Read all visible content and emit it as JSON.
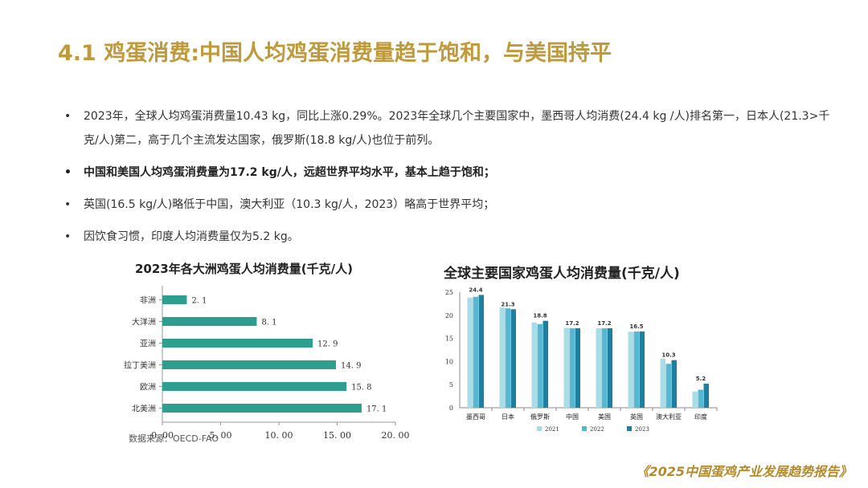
{
  "title": "4.1 鸡蛋消费:中国人均鸡蛋消费量趋于饱和，与美国持平",
  "bullets": [
    {
      "text": "2023年，全球人均鸡蛋消费量10.43 kg，同比上涨0.29%。2023年全球几个主要国家中，墨西哥人均消费(24.4 kg /人)排名第一，日本人(21.3>千克/人)第二，高于几个主流发达国家，俄罗斯(18.8 kg/人)也位于前列。",
      "bold": false
    },
    {
      "text": "中国和美国人均鸡蛋消费量为17.2 kg/人，远超世界平均水平，基本上趋于饱和；",
      "bold": true
    },
    {
      "text": "英国(16.5 kg/人)略低于中国，澳大利亚（10.3 kg/人，2023）略高于世界平均；",
      "bold": false
    },
    {
      "text": "因饮食习惯，印度人均消费量仅为5.2 kg。",
      "bold": false
    }
  ],
  "bullet_symbol": "•",
  "source": "数据来源：OECD-FAO",
  "footer": "《2025中国蛋鸡产业发展趋势报告》",
  "colors": {
    "title": "#c09a3a",
    "bar": "#2e9e8f",
    "series": [
      "#a8dce6",
      "#55b8d0",
      "#1f7f9e"
    ]
  },
  "chart_data": [
    {
      "type": "bar",
      "orientation": "horizontal",
      "title": "2023年各大洲鸡蛋人均消费量(千克/人)",
      "categories": [
        "非洲",
        "大洋洲",
        "亚洲",
        "拉丁美洲",
        "欧洲",
        "北美洲"
      ],
      "values": [
        2.1,
        8.1,
        12.9,
        14.9,
        15.8,
        17.1
      ],
      "value_labels": [
        "2. 1",
        "8. 1",
        "12. 9",
        "14. 9",
        "15. 8",
        "17. 1"
      ],
      "xlim": [
        0,
        20
      ],
      "xticks": [
        "0. 00",
        "5. 00",
        "10. 00",
        "15. 00",
        "20. 00"
      ],
      "grid": false
    },
    {
      "type": "bar",
      "title": "全球主要国家鸡蛋人均消费量(千克/人)",
      "categories": [
        "墨西哥",
        "日本",
        "俄罗斯",
        "中国",
        "美国",
        "英国",
        "澳大利亚",
        "印度"
      ],
      "series": [
        {
          "name": "2021",
          "values": [
            23.8,
            21.7,
            18.4,
            17.3,
            17.2,
            16.4,
            10.6,
            3.5
          ]
        },
        {
          "name": "2022",
          "values": [
            24.0,
            21.5,
            18.1,
            17.2,
            17.2,
            16.5,
            9.5,
            3.9
          ]
        },
        {
          "name": "2023",
          "values": [
            24.4,
            21.3,
            18.8,
            17.2,
            17.2,
            16.5,
            10.3,
            5.2
          ]
        }
      ],
      "labels": [
        "24.4",
        "21.3",
        "18.8",
        "17.2",
        "17.2",
        "16.5",
        "10.3",
        "5.2"
      ],
      "ylim": [
        0,
        25
      ],
      "yticks": [
        "0",
        "5",
        "10",
        "15",
        "20",
        "25"
      ],
      "legend": "bottom",
      "grid": false
    }
  ]
}
